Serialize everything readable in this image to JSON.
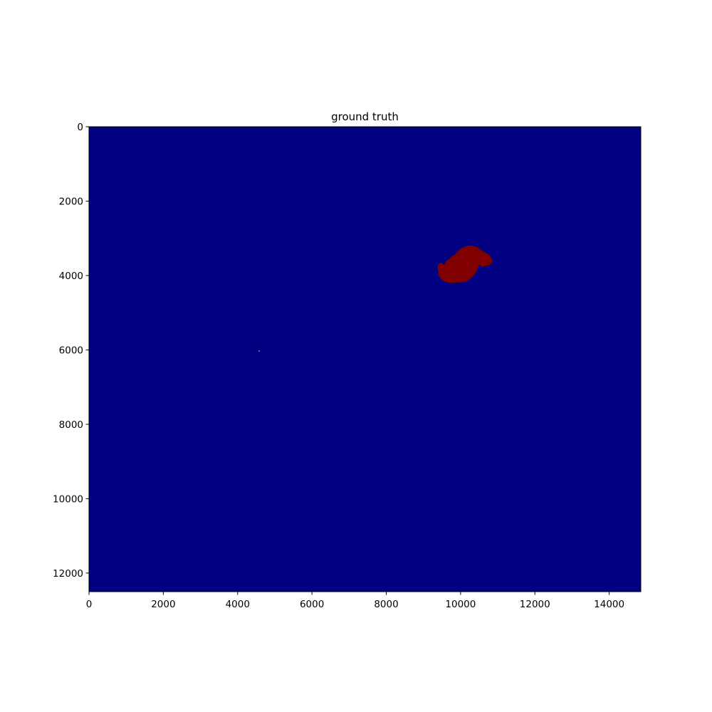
{
  "chart_data": {
    "type": "heatmap",
    "title": "ground truth",
    "xlabel": "",
    "ylabel": "",
    "xlim": [
      0,
      14850
    ],
    "ylim": [
      12500,
      0
    ],
    "x_ticks": [
      0,
      2000,
      4000,
      6000,
      8000,
      10000,
      12000,
      14000
    ],
    "y_ticks": [
      0,
      2000,
      4000,
      6000,
      8000,
      10000,
      12000
    ],
    "grid": false,
    "legend": "none",
    "colormap": "jet",
    "colors": {
      "background_class": "#000080",
      "foreground_class": "#800000",
      "spot": "#ffffff"
    },
    "regions": [
      {
        "label": 1,
        "outline": [
          [
            9400,
            3700
          ],
          [
            9480,
            3650
          ],
          [
            9560,
            3720
          ],
          [
            9620,
            3600
          ],
          [
            9700,
            3560
          ],
          [
            9760,
            3480
          ],
          [
            9840,
            3440
          ],
          [
            9900,
            3380
          ],
          [
            9980,
            3300
          ],
          [
            10060,
            3250
          ],
          [
            10180,
            3200
          ],
          [
            10300,
            3190
          ],
          [
            10420,
            3230
          ],
          [
            10540,
            3300
          ],
          [
            10660,
            3380
          ],
          [
            10760,
            3440
          ],
          [
            10840,
            3540
          ],
          [
            10860,
            3640
          ],
          [
            10780,
            3720
          ],
          [
            10660,
            3740
          ],
          [
            10580,
            3780
          ],
          [
            10500,
            3700
          ],
          [
            10460,
            3800
          ],
          [
            10440,
            3880
          ],
          [
            10380,
            3960
          ],
          [
            10300,
            4060
          ],
          [
            10180,
            4140
          ],
          [
            10060,
            4180
          ],
          [
            9900,
            4190
          ],
          [
            9760,
            4200
          ],
          [
            9620,
            4180
          ],
          [
            9500,
            4120
          ],
          [
            9420,
            4020
          ],
          [
            9400,
            3900
          ],
          [
            9380,
            3800
          ]
        ]
      }
    ],
    "points": [
      {
        "x": 4580,
        "y": 6030,
        "label": 1
      }
    ]
  }
}
